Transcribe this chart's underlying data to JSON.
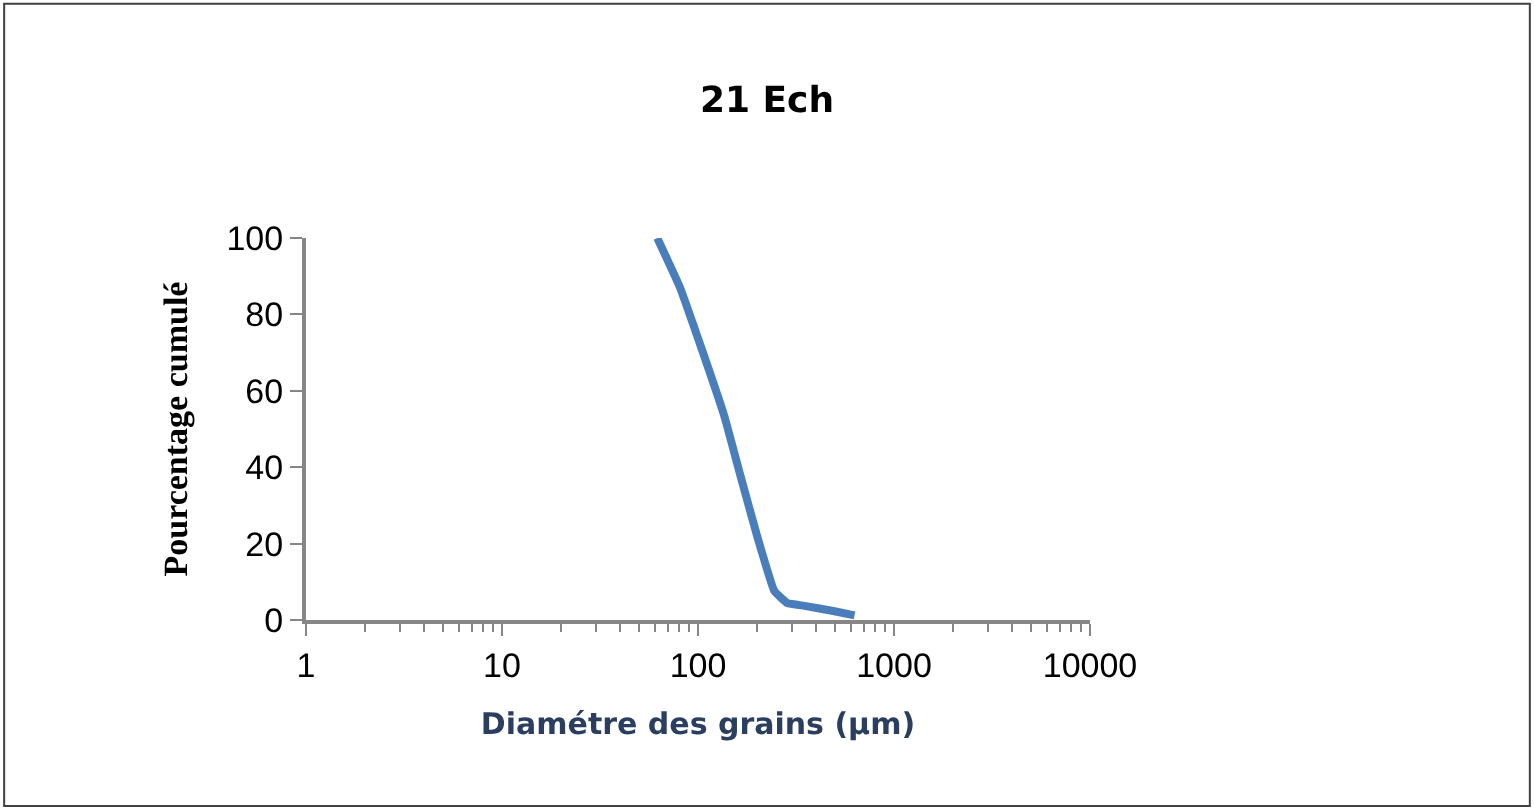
{
  "chart_data": {
    "type": "line",
    "title": "21 Ech",
    "xlabel": "Diamétre des grains (µm)",
    "ylabel": "Pourcentage cumulé",
    "x": [
      62,
      81,
      107,
      136,
      165,
      201,
      245,
      286,
      349,
      497,
      629
    ],
    "series": [
      {
        "color": "#4a7ebb",
        "values": [
          100,
          87,
          69.4,
          53.5,
          37.6,
          21.7,
          7.6,
          4.4,
          3.7,
          2.3,
          1.2
        ]
      }
    ],
    "log": "x",
    "xlim": [
      1,
      10000
    ],
    "xticks": [
      1,
      10,
      100,
      1000,
      10000
    ],
    "ylim": [
      0,
      100
    ],
    "yticks": [
      0,
      20,
      40,
      60,
      80,
      100
    ],
    "marker": "none",
    "line_style": "solid"
  }
}
